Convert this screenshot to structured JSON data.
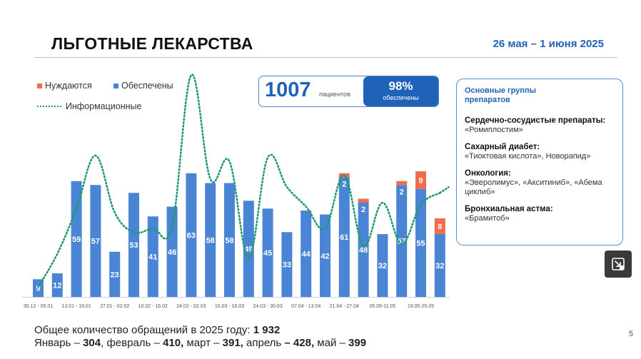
{
  "header": {
    "title": "ЛЬГОТНЫЕ ЛЕКАРСТВА",
    "date": "26 мая – 1 июня 2025"
  },
  "legend": {
    "needed": "Нуждаются",
    "provided": "Обеспечены",
    "info": "Информационные"
  },
  "kpi": {
    "number": "1007",
    "number_label": "пациентов",
    "percent": "98%",
    "percent_label": "обеспечены"
  },
  "panel": {
    "title": "Основные группы препаратов",
    "groups": [
      {
        "heading": "Сердечно-сосудистые препараты:",
        "text": "«Ромиплостим»"
      },
      {
        "heading": "Сахарный диабет:",
        "text": "«Тиоктовая кислота», Новорапид»"
      },
      {
        "heading": "Онкология:",
        "text": "«Эверолимус», «Акситиниб», «Абема\nциклиб»"
      },
      {
        "heading": "Бронхиальная астма:",
        "text": "«Брамитоб»"
      }
    ]
  },
  "chart_data": {
    "type": "bar",
    "stacked": true,
    "categories": [
      "30.12 - 05.01",
      "",
      "13.01 - 19.01",
      "",
      "27.01 - 02.02",
      "",
      "10.02 - 16.02",
      "",
      "24.02 - 02.03",
      "",
      "10.03 - 16.03",
      "",
      "24.03 - 30.03",
      "",
      "07.04 - 13.04",
      "",
      "21.04 - 27.04",
      "",
      "05.05-11.05",
      "",
      "19.05-25.05",
      ""
    ],
    "series": [
      {
        "name": "Обеспечены",
        "values": [
          9,
          12,
          59,
          57,
          23,
          53,
          41,
          46,
          63,
          58,
          58,
          49,
          45,
          33,
          44,
          42,
          61,
          48,
          32,
          57,
          55,
          32
        ]
      },
      {
        "name": "Нуждаются",
        "values": [
          0,
          0,
          0,
          0,
          0,
          0,
          0,
          0,
          0,
          0,
          0,
          0,
          0,
          0,
          0,
          0,
          2,
          2,
          0,
          2,
          9,
          8
        ]
      },
      {
        "name": "Информационные",
        "values": [
          5,
          22,
          45,
          72,
          43,
          33,
          35,
          36,
          113,
          60,
          69,
          20,
          71,
          56,
          46,
          35,
          62,
          26,
          48,
          27,
          47,
          53
        ]
      }
    ],
    "colors": {
      "provided": "#4a84d4",
      "needed": "#ef6c4f",
      "info": "#1f9a70",
      "label": "#ffffff"
    },
    "grid": false,
    "legend_position": "top-left"
  },
  "footer": {
    "total_prefix": "Общее количество обращений в 2025 году: ",
    "total_value": "1 932",
    "jan_label": "Январь – ",
    "jan_value": "304",
    "feb_label": ", февраль – ",
    "feb_value": "410,",
    "mar_label": " март  – ",
    "mar_value": "391,",
    "apr_label": " апрель ",
    "apr_value": "– 428,",
    "may_label": " май – ",
    "may_value": "399"
  },
  "page_number": "5",
  "icons": {
    "expand": "expand-arrow-icon"
  }
}
